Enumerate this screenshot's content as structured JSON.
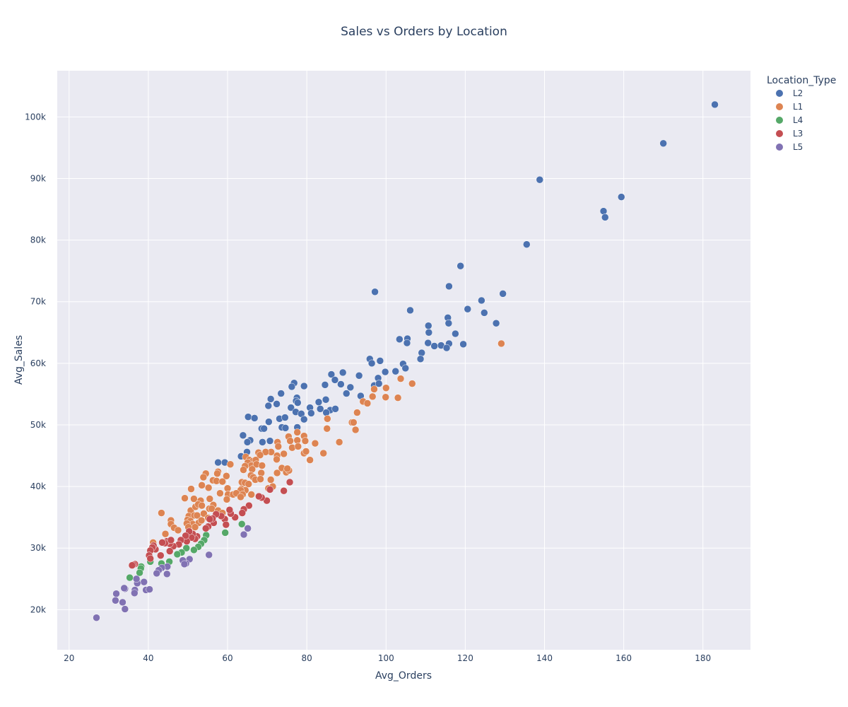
{
  "chart_data": {
    "type": "scatter",
    "title": "Sales vs Orders by Location",
    "xlabel": "Avg_Orders",
    "ylabel": "Avg_Sales",
    "xlim": [
      17,
      192
    ],
    "ylim": [
      13500,
      107500
    ],
    "x_ticks": [
      20,
      40,
      60,
      80,
      100,
      120,
      140,
      160,
      180
    ],
    "y_ticks": [
      20000,
      30000,
      40000,
      50000,
      60000,
      70000,
      80000,
      90000,
      100000
    ],
    "y_tick_labels": [
      "20k",
      "30k",
      "40k",
      "50k",
      "60k",
      "70k",
      "80k",
      "90k",
      "100k"
    ],
    "grid": true,
    "legend_title": "Location_Type",
    "legend_placement": "top-right",
    "series": [
      {
        "name": "L2",
        "color": "#4c72b0",
        "points": [
          [
            183,
            102000
          ],
          [
            170,
            95700
          ],
          [
            138.8,
            89800
          ],
          [
            159.4,
            87000
          ],
          [
            154.9,
            84700
          ],
          [
            155.3,
            83700
          ],
          [
            135.5,
            79300
          ],
          [
            118.8,
            75800
          ],
          [
            97.2,
            71600
          ],
          [
            115.9,
            72500
          ],
          [
            129.5,
            71300
          ],
          [
            124.1,
            70200
          ],
          [
            120.6,
            68800
          ],
          [
            106.1,
            68600
          ],
          [
            124.8,
            68200
          ],
          [
            115.6,
            67400
          ],
          [
            110.7,
            66100
          ],
          [
            115.8,
            66500
          ],
          [
            127.8,
            66500
          ],
          [
            110.8,
            65000
          ],
          [
            117.5,
            64800
          ],
          [
            103.4,
            63900
          ],
          [
            105.4,
            64000
          ],
          [
            105.3,
            63300
          ],
          [
            110.6,
            63300
          ],
          [
            112.2,
            62800
          ],
          [
            113.9,
            62900
          ],
          [
            115.9,
            63200
          ],
          [
            119.5,
            63100
          ],
          [
            115.3,
            62500
          ],
          [
            109,
            61700
          ],
          [
            108.7,
            60700
          ],
          [
            95.9,
            60700
          ],
          [
            98.5,
            60400
          ],
          [
            96.4,
            60000
          ],
          [
            104.3,
            59900
          ],
          [
            104.9,
            59200
          ],
          [
            102.4,
            58700
          ],
          [
            99.8,
            58600
          ],
          [
            89.1,
            58500
          ],
          [
            86.2,
            58200
          ],
          [
            93.2,
            58000
          ],
          [
            98,
            57600
          ],
          [
            87.1,
            57300
          ],
          [
            97,
            56400
          ],
          [
            98.2,
            56700
          ],
          [
            88.6,
            56600
          ],
          [
            84.6,
            56500
          ],
          [
            91,
            56100
          ],
          [
            79.3,
            56300
          ],
          [
            76.8,
            56800
          ],
          [
            76.2,
            56200
          ],
          [
            90,
            55100
          ],
          [
            93.6,
            54700
          ],
          [
            73.5,
            55100
          ],
          [
            70.9,
            54200
          ],
          [
            77.5,
            54400
          ],
          [
            77.3,
            53900
          ],
          [
            83,
            53700
          ],
          [
            84.8,
            54100
          ],
          [
            72.4,
            53400
          ],
          [
            70.3,
            53100
          ],
          [
            76,
            52800
          ],
          [
            77.7,
            53600
          ],
          [
            80.8,
            52800
          ],
          [
            83.4,
            52600
          ],
          [
            85.9,
            52400
          ],
          [
            87.2,
            52600
          ],
          [
            77.2,
            52100
          ],
          [
            78.6,
            51800
          ],
          [
            81.1,
            51900
          ],
          [
            84.9,
            52000
          ],
          [
            65.2,
            51300
          ],
          [
            66.8,
            51100
          ],
          [
            73.1,
            51000
          ],
          [
            74.5,
            51200
          ],
          [
            79.3,
            50900
          ],
          [
            70.4,
            50500
          ],
          [
            68.6,
            49400
          ],
          [
            69.2,
            49400
          ],
          [
            73.7,
            49600
          ],
          [
            74.6,
            49500
          ],
          [
            77.6,
            49600
          ],
          [
            63.9,
            48300
          ],
          [
            65.7,
            47500
          ],
          [
            65,
            47200
          ],
          [
            68.8,
            47200
          ],
          [
            70.7,
            47400
          ],
          [
            57.6,
            43900
          ],
          [
            59.3,
            43900
          ],
          [
            63.4,
            44900
          ],
          [
            64.9,
            45600
          ]
        ]
      },
      {
        "name": "L1",
        "color": "#dd8452",
        "points": [
          [
            129.1,
            63200
          ],
          [
            106.6,
            56700
          ],
          [
            103.7,
            57500
          ],
          [
            100,
            56000
          ],
          [
            97,
            55800
          ],
          [
            103,
            54400
          ],
          [
            96.6,
            54600
          ],
          [
            99.9,
            54500
          ],
          [
            94.2,
            53800
          ],
          [
            95.3,
            53500
          ],
          [
            92.7,
            52000
          ],
          [
            91.4,
            50400
          ],
          [
            91.8,
            50400
          ],
          [
            85.2,
            51000
          ],
          [
            85.1,
            49400
          ],
          [
            92.3,
            49200
          ],
          [
            77.6,
            48800
          ],
          [
            79.3,
            48200
          ],
          [
            75.4,
            48100
          ],
          [
            75.8,
            47400
          ],
          [
            77.6,
            47500
          ],
          [
            79.6,
            47400
          ],
          [
            82.1,
            47000
          ],
          [
            88.2,
            47200
          ],
          [
            72.6,
            47200
          ],
          [
            72.8,
            46500
          ],
          [
            76.3,
            46300
          ],
          [
            77.8,
            46500
          ],
          [
            71,
            45600
          ],
          [
            69.6,
            45600
          ],
          [
            67.8,
            45500
          ],
          [
            68.2,
            45100
          ],
          [
            72.5,
            45000
          ],
          [
            74.2,
            45300
          ],
          [
            79.3,
            45400
          ],
          [
            84.2,
            45400
          ],
          [
            72.4,
            44400
          ],
          [
            64.6,
            44800
          ],
          [
            65.5,
            44300
          ],
          [
            66.3,
            44100
          ],
          [
            67.1,
            44300
          ],
          [
            65.1,
            43900
          ],
          [
            66,
            43400
          ],
          [
            67.3,
            43600
          ],
          [
            68.7,
            43400
          ],
          [
            79.8,
            45700
          ],
          [
            80.8,
            44300
          ],
          [
            60.7,
            43600
          ],
          [
            64.4,
            43300
          ],
          [
            64,
            42700
          ],
          [
            66.2,
            42800
          ],
          [
            68.5,
            42200
          ],
          [
            72.5,
            42200
          ],
          [
            73.7,
            43000
          ],
          [
            74.8,
            42300
          ],
          [
            75.5,
            42600
          ],
          [
            75.1,
            42900
          ],
          [
            57.6,
            42400
          ],
          [
            57.4,
            42100
          ],
          [
            54.5,
            42100
          ],
          [
            53.9,
            41500
          ],
          [
            56.3,
            41000
          ],
          [
            59.7,
            41700
          ],
          [
            65.9,
            41800
          ],
          [
            66.5,
            41500
          ],
          [
            67,
            41100
          ],
          [
            68.3,
            41200
          ],
          [
            70.9,
            41100
          ],
          [
            57.2,
            40900
          ],
          [
            58.7,
            40800
          ],
          [
            63.6,
            40700
          ],
          [
            64.4,
            40600
          ],
          [
            65.3,
            40400
          ],
          [
            50.8,
            39600
          ],
          [
            55.2,
            39800
          ],
          [
            53.5,
            40200
          ],
          [
            60,
            39700
          ],
          [
            63.5,
            39600
          ],
          [
            64.5,
            39400
          ],
          [
            63.3,
            39400
          ],
          [
            70.3,
            39700
          ],
          [
            71.4,
            40000
          ],
          [
            58.1,
            38900
          ],
          [
            60.1,
            38700
          ],
          [
            61.4,
            38700
          ],
          [
            62.2,
            38900
          ],
          [
            63.8,
            38700
          ],
          [
            49.2,
            38100
          ],
          [
            51.5,
            38000
          ],
          [
            53.2,
            37700
          ],
          [
            55.5,
            38000
          ],
          [
            56.4,
            37000
          ],
          [
            59.8,
            37900
          ],
          [
            63.3,
            38300
          ],
          [
            66,
            38700
          ],
          [
            50.7,
            36100
          ],
          [
            51.9,
            36700
          ],
          [
            52.6,
            37100
          ],
          [
            53.5,
            36900
          ],
          [
            54,
            35600
          ],
          [
            55.4,
            36400
          ],
          [
            56,
            36400
          ],
          [
            57.6,
            36100
          ],
          [
            58.7,
            35700
          ],
          [
            50.2,
            35200
          ],
          [
            51.6,
            35300
          ],
          [
            52.3,
            35300
          ],
          [
            55.1,
            34900
          ],
          [
            49.9,
            34600
          ],
          [
            50.6,
            34400
          ],
          [
            51.2,
            33900
          ],
          [
            52.7,
            34100
          ],
          [
            53.4,
            34500
          ],
          [
            49.7,
            34000
          ],
          [
            50.1,
            33400
          ],
          [
            51.8,
            33400
          ],
          [
            45.7,
            34500
          ],
          [
            45.7,
            33900
          ],
          [
            46.5,
            33300
          ],
          [
            47.5,
            32900
          ],
          [
            43.3,
            35700
          ],
          [
            44.3,
            32300
          ],
          [
            41.2,
            30900
          ]
        ]
      },
      {
        "name": "L4",
        "color": "#55a868",
        "points": [
          [
            63.6,
            33900
          ],
          [
            59.4,
            32500
          ],
          [
            54.6,
            32100
          ],
          [
            54.1,
            31300
          ],
          [
            53.3,
            30700
          ],
          [
            52.6,
            30200
          ],
          [
            51.5,
            29700
          ],
          [
            49.6,
            30000
          ],
          [
            48.4,
            29300
          ],
          [
            47.3,
            29000
          ],
          [
            45.3,
            27800
          ],
          [
            43.3,
            27500
          ],
          [
            40.5,
            27800
          ],
          [
            38.2,
            27000
          ],
          [
            38.1,
            26700
          ],
          [
            37.8,
            26000
          ],
          [
            35.3,
            25200
          ],
          [
            37.1,
            24800
          ]
        ]
      },
      {
        "name": "L3",
        "color": "#c44e52",
        "points": [
          [
            75.7,
            40700
          ],
          [
            74.2,
            39300
          ],
          [
            70.7,
            39500
          ],
          [
            69.9,
            37700
          ],
          [
            68.6,
            38200
          ],
          [
            67.9,
            38400
          ],
          [
            65.4,
            36900
          ],
          [
            64.1,
            36300
          ],
          [
            63.7,
            35700
          ],
          [
            61.9,
            35000
          ],
          [
            60.8,
            35600
          ],
          [
            60.5,
            36200
          ],
          [
            59.3,
            34700
          ],
          [
            59.6,
            33800
          ],
          [
            58.4,
            35200
          ],
          [
            57.1,
            35500
          ],
          [
            56.5,
            34100
          ],
          [
            56.2,
            34800
          ],
          [
            55.5,
            34700
          ],
          [
            55.1,
            33500
          ],
          [
            54.5,
            33200
          ],
          [
            52.3,
            31900
          ],
          [
            51.8,
            31500
          ],
          [
            51.2,
            32300
          ],
          [
            50.9,
            31700
          ],
          [
            50.3,
            32700
          ],
          [
            49.7,
            31100
          ],
          [
            49.4,
            32000
          ],
          [
            48.2,
            31300
          ],
          [
            47.7,
            30600
          ],
          [
            46.3,
            30300
          ],
          [
            45.4,
            30700
          ],
          [
            44.7,
            31100
          ],
          [
            44.2,
            30800
          ],
          [
            45.4,
            29500
          ],
          [
            45.7,
            31300
          ],
          [
            43.5,
            30900
          ],
          [
            43.1,
            28800
          ],
          [
            41.8,
            29800
          ],
          [
            41.3,
            30400
          ],
          [
            41,
            30100
          ],
          [
            40.5,
            29600
          ],
          [
            40.2,
            28800
          ],
          [
            40.5,
            28300
          ],
          [
            36.6,
            27400
          ],
          [
            36.2,
            27300
          ],
          [
            35.9,
            27200
          ]
        ]
      },
      {
        "name": "L5",
        "color": "#8172b3",
        "points": [
          [
            65.1,
            33200
          ],
          [
            64.1,
            32200
          ],
          [
            55.3,
            28900
          ],
          [
            50.4,
            28200
          ],
          [
            49.5,
            27500
          ],
          [
            48.7,
            28000
          ],
          [
            49.1,
            27400
          ],
          [
            44.8,
            27000
          ],
          [
            43.4,
            26800
          ],
          [
            42.6,
            26400
          ],
          [
            42.1,
            25900
          ],
          [
            44.7,
            25800
          ],
          [
            38.9,
            24500
          ],
          [
            37.2,
            24300
          ],
          [
            37,
            25000
          ],
          [
            36.6,
            23200
          ],
          [
            36.5,
            22700
          ],
          [
            34.1,
            23400
          ],
          [
            33.9,
            23500
          ],
          [
            39.4,
            23200
          ],
          [
            40.3,
            23300
          ],
          [
            31.9,
            22600
          ],
          [
            31.7,
            21500
          ],
          [
            33.5,
            21200
          ],
          [
            34.1,
            20100
          ],
          [
            26.9,
            18700
          ]
        ]
      }
    ]
  }
}
